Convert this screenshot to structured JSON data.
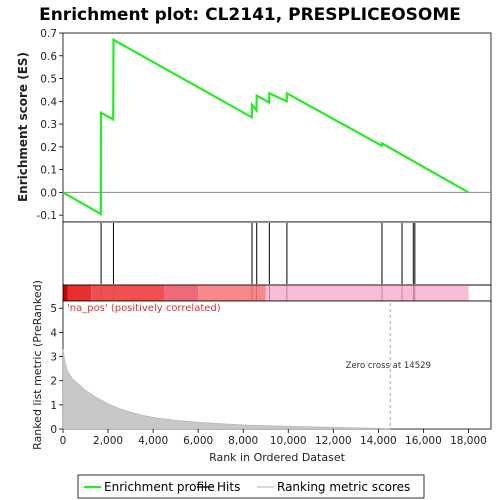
{
  "chart_data": {
    "type": "line",
    "title": "Enrichment plot: CL2141, PRESPLICEOSOME",
    "es_panel": {
      "ylabel": "Enrichment score (ES)",
      "ylim": [
        -0.13,
        0.7
      ],
      "yticks": [
        -0.1,
        0.0,
        0.1,
        0.2,
        0.3,
        0.4,
        0.5,
        0.6,
        0.7
      ],
      "ytick_labels": [
        "-0.1",
        "0.0",
        "0.1",
        "0.2",
        "0.3",
        "0.4",
        "0.5",
        "0.6",
        "0.7"
      ],
      "series": [
        {
          "name": "Enrichment profile",
          "color": "#22ee22",
          "points": [
            [
              0,
              0.0
            ],
            [
              1680,
              -0.095
            ],
            [
              1690,
              0.35
            ],
            [
              2230,
              0.32
            ],
            [
              2240,
              0.67
            ],
            [
              8380,
              0.33
            ],
            [
              8390,
              0.385
            ],
            [
              8590,
              0.36
            ],
            [
              8600,
              0.425
            ],
            [
              9150,
              0.395
            ],
            [
              9160,
              0.435
            ],
            [
              9930,
              0.4
            ],
            [
              9940,
              0.435
            ],
            [
              14150,
              0.205
            ],
            [
              14160,
              0.215
            ],
            [
              18000,
              0.0
            ]
          ]
        }
      ]
    },
    "hits": {
      "name": "Hits",
      "positions": [
        1690,
        2240,
        8390,
        8600,
        9160,
        9940,
        14160,
        15050,
        15550,
        15620
      ]
    },
    "ranking_panel": {
      "ylabel": "Ranked list metric (PreRanked)",
      "ylim": [
        0,
        5.3
      ],
      "yticks": [
        0,
        1,
        2,
        3,
        4,
        5
      ],
      "ytick_labels": [
        "0",
        "1",
        "2",
        "3",
        "4",
        "5"
      ],
      "series_name": "Ranking metric scores",
      "profile": [
        [
          0,
          3.3
        ],
        [
          100,
          2.7
        ],
        [
          200,
          2.4
        ],
        [
          400,
          2.1
        ],
        [
          700,
          1.85
        ],
        [
          1000,
          1.6
        ],
        [
          1500,
          1.3
        ],
        [
          2000,
          1.05
        ],
        [
          2500,
          0.85
        ],
        [
          3000,
          0.7
        ],
        [
          3500,
          0.58
        ],
        [
          4000,
          0.48
        ],
        [
          5000,
          0.36
        ],
        [
          6000,
          0.28
        ],
        [
          7000,
          0.22
        ],
        [
          8000,
          0.17
        ],
        [
          9000,
          0.14
        ],
        [
          10000,
          0.11
        ],
        [
          11000,
          0.09
        ],
        [
          12000,
          0.07
        ],
        [
          13000,
          0.05
        ],
        [
          14000,
          0.03
        ],
        [
          14529,
          0.0
        ]
      ],
      "pos_label": "'na_pos' (positively correlated)",
      "zero_cross_label": "Zero cross at 14529",
      "zero_cross": 14529
    },
    "xaxis": {
      "xlabel": "Rank in Ordered Dataset",
      "xlim": [
        0,
        19000
      ],
      "xticks": [
        0,
        2000,
        4000,
        6000,
        8000,
        10000,
        12000,
        14000,
        16000,
        18000
      ],
      "xtick_labels": [
        "0",
        "2,000",
        "4,000",
        "6,000",
        "8,000",
        "10,000",
        "12,000",
        "14,000",
        "16,000",
        "18,000"
      ]
    },
    "colorbar": {
      "segments": [
        {
          "from": 0,
          "to": 200,
          "color": "#cc0000"
        },
        {
          "from": 200,
          "to": 1250,
          "color": "#e83030"
        },
        {
          "from": 1250,
          "to": 4500,
          "color": "#f05050"
        },
        {
          "from": 4500,
          "to": 6000,
          "color": "#f06a7a"
        },
        {
          "from": 6000,
          "to": 9000,
          "color": "#f88888"
        },
        {
          "from": 9000,
          "to": 18000,
          "color": "#f8bcd8"
        }
      ]
    },
    "legend": {
      "items": [
        {
          "label": "Enrichment profile",
          "color": "#22ee22"
        },
        {
          "label": "Hits",
          "color": "#000000"
        },
        {
          "label": "Ranking metric scores",
          "color": "#c0c0c0"
        }
      ]
    }
  }
}
